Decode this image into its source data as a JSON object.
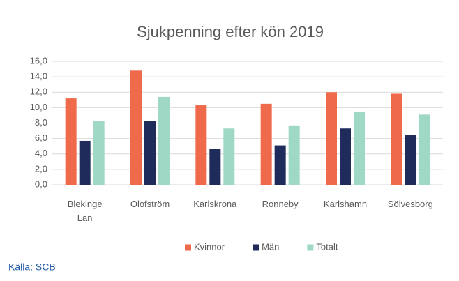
{
  "chart_data": {
    "type": "bar",
    "title": "Sjukpenning efter kön 2019",
    "categories": [
      "Blekinge Län",
      "Olofström",
      "Karlskrona",
      "Ronneby",
      "Karlshamn",
      "Sölvesborg"
    ],
    "series": [
      {
        "name": "Kvinnor",
        "color": "#ee6a4b",
        "values": [
          11.2,
          14.8,
          10.3,
          10.5,
          12.0,
          11.8
        ]
      },
      {
        "name": "Män",
        "color": "#1f2b5b",
        "values": [
          5.7,
          8.3,
          4.7,
          5.1,
          7.3,
          6.5
        ]
      },
      {
        "name": "Totalt",
        "color": "#9fd8c5",
        "values": [
          8.3,
          11.4,
          7.3,
          7.7,
          9.5,
          9.1
        ]
      }
    ],
    "ylim": [
      0,
      16
    ],
    "yticks": [
      {
        "value": 0,
        "label": "0,0"
      },
      {
        "value": 2,
        "label": "2,0"
      },
      {
        "value": 4,
        "label": "4,0"
      },
      {
        "value": 6,
        "label": "6,0"
      },
      {
        "value": 8,
        "label": "8,0"
      },
      {
        "value": 10,
        "label": "10,0"
      },
      {
        "value": 12,
        "label": "12,0"
      },
      {
        "value": 14,
        "label": "14,0"
      },
      {
        "value": 16,
        "label": "16,0"
      }
    ],
    "grid": true,
    "legend": "bottom"
  },
  "source": "Källa: SCB"
}
